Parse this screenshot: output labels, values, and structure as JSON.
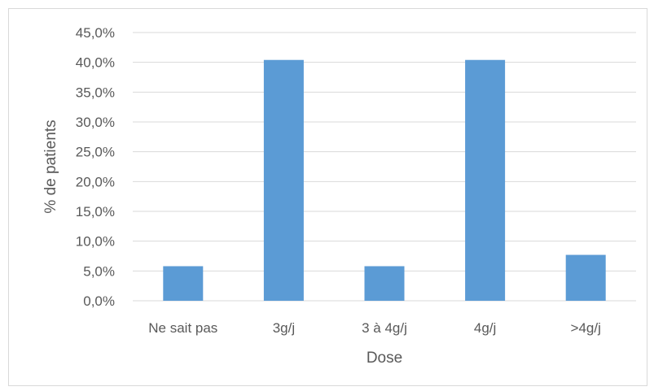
{
  "chart_data": {
    "type": "bar",
    "title": "",
    "xlabel": "Dose",
    "ylabel": "% de patients",
    "categories": [
      "Ne sait pas",
      "3g/j",
      "3 à 4g/j",
      "4g/j",
      ">4g/j"
    ],
    "values": [
      5.8,
      40.4,
      5.8,
      40.4,
      7.7
    ],
    "ylim": [
      0,
      45
    ],
    "yticks": [
      0,
      5,
      10,
      15,
      20,
      25,
      30,
      35,
      40,
      45
    ],
    "ytick_labels": [
      "0,0%",
      "5,0%",
      "10,0%",
      "15,0%",
      "20,0%",
      "25,0%",
      "30,0%",
      "35,0%",
      "40,0%",
      "45,0%"
    ],
    "grid": true,
    "bar_color": "#5b9bd5",
    "grid_color": "#d9d9d9"
  }
}
